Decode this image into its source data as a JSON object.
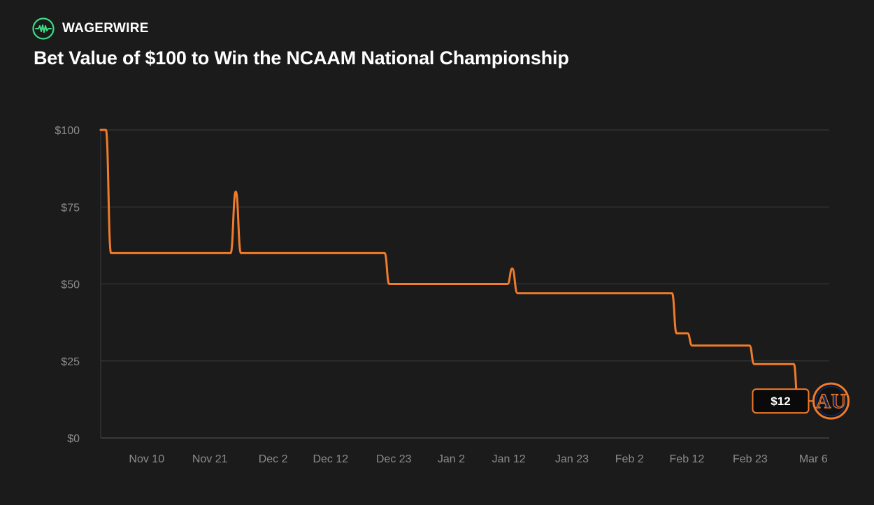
{
  "brand": {
    "name": "WAGERWIRE",
    "accent_color": "#3ddc84"
  },
  "title": "Bet Value of $100 to Win the NCAAM National Championship",
  "chart_data": {
    "type": "line",
    "title": "Bet Value of $100 to Win the NCAAM National Championship",
    "xlabel": "",
    "ylabel": "",
    "ylim": [
      0,
      100
    ],
    "xlim_days": [
      0,
      127
    ],
    "y_ticks": [
      0,
      25,
      50,
      75,
      100
    ],
    "y_tick_labels": [
      "$0",
      "$25",
      "$50",
      "$75",
      "$100"
    ],
    "x_ticks": [
      {
        "label": "Nov 10",
        "day": 8
      },
      {
        "label": "Nov 21",
        "day": 19
      },
      {
        "label": "Dec 2",
        "day": 30
      },
      {
        "label": "Dec 12",
        "day": 40
      },
      {
        "label": "Dec 23",
        "day": 51
      },
      {
        "label": "Jan 2",
        "day": 61
      },
      {
        "label": "Jan 12",
        "day": 71
      },
      {
        "label": "Jan 23",
        "day": 82
      },
      {
        "label": "Feb 2",
        "day": 92
      },
      {
        "label": "Feb 12",
        "day": 102
      },
      {
        "label": "Feb 23",
        "day": 113
      },
      {
        "label": "Mar 6",
        "day": 124
      }
    ],
    "grid": true,
    "line_color": "#f07b2a",
    "series": [
      {
        "name": "Auburn",
        "points": [
          [
            0,
            100
          ],
          [
            0.9,
            100
          ],
          [
            1.8,
            60
          ],
          [
            22.6,
            60
          ],
          [
            23.5,
            80
          ],
          [
            24.4,
            60
          ],
          [
            49.4,
            60
          ],
          [
            50.2,
            50
          ],
          [
            70.8,
            50
          ],
          [
            71.6,
            55
          ],
          [
            72.5,
            47
          ],
          [
            99.4,
            47
          ],
          [
            100.2,
            34
          ],
          [
            102.1,
            34
          ],
          [
            102.9,
            30
          ],
          [
            112.9,
            30
          ],
          [
            113.7,
            24
          ],
          [
            120.6,
            24
          ],
          [
            121.3,
            12
          ],
          [
            122.2,
            12
          ]
        ]
      }
    ],
    "end_label": {
      "text": "$12",
      "value": 12,
      "team_logo_text": "AU",
      "team_color": "#0d2557"
    }
  }
}
